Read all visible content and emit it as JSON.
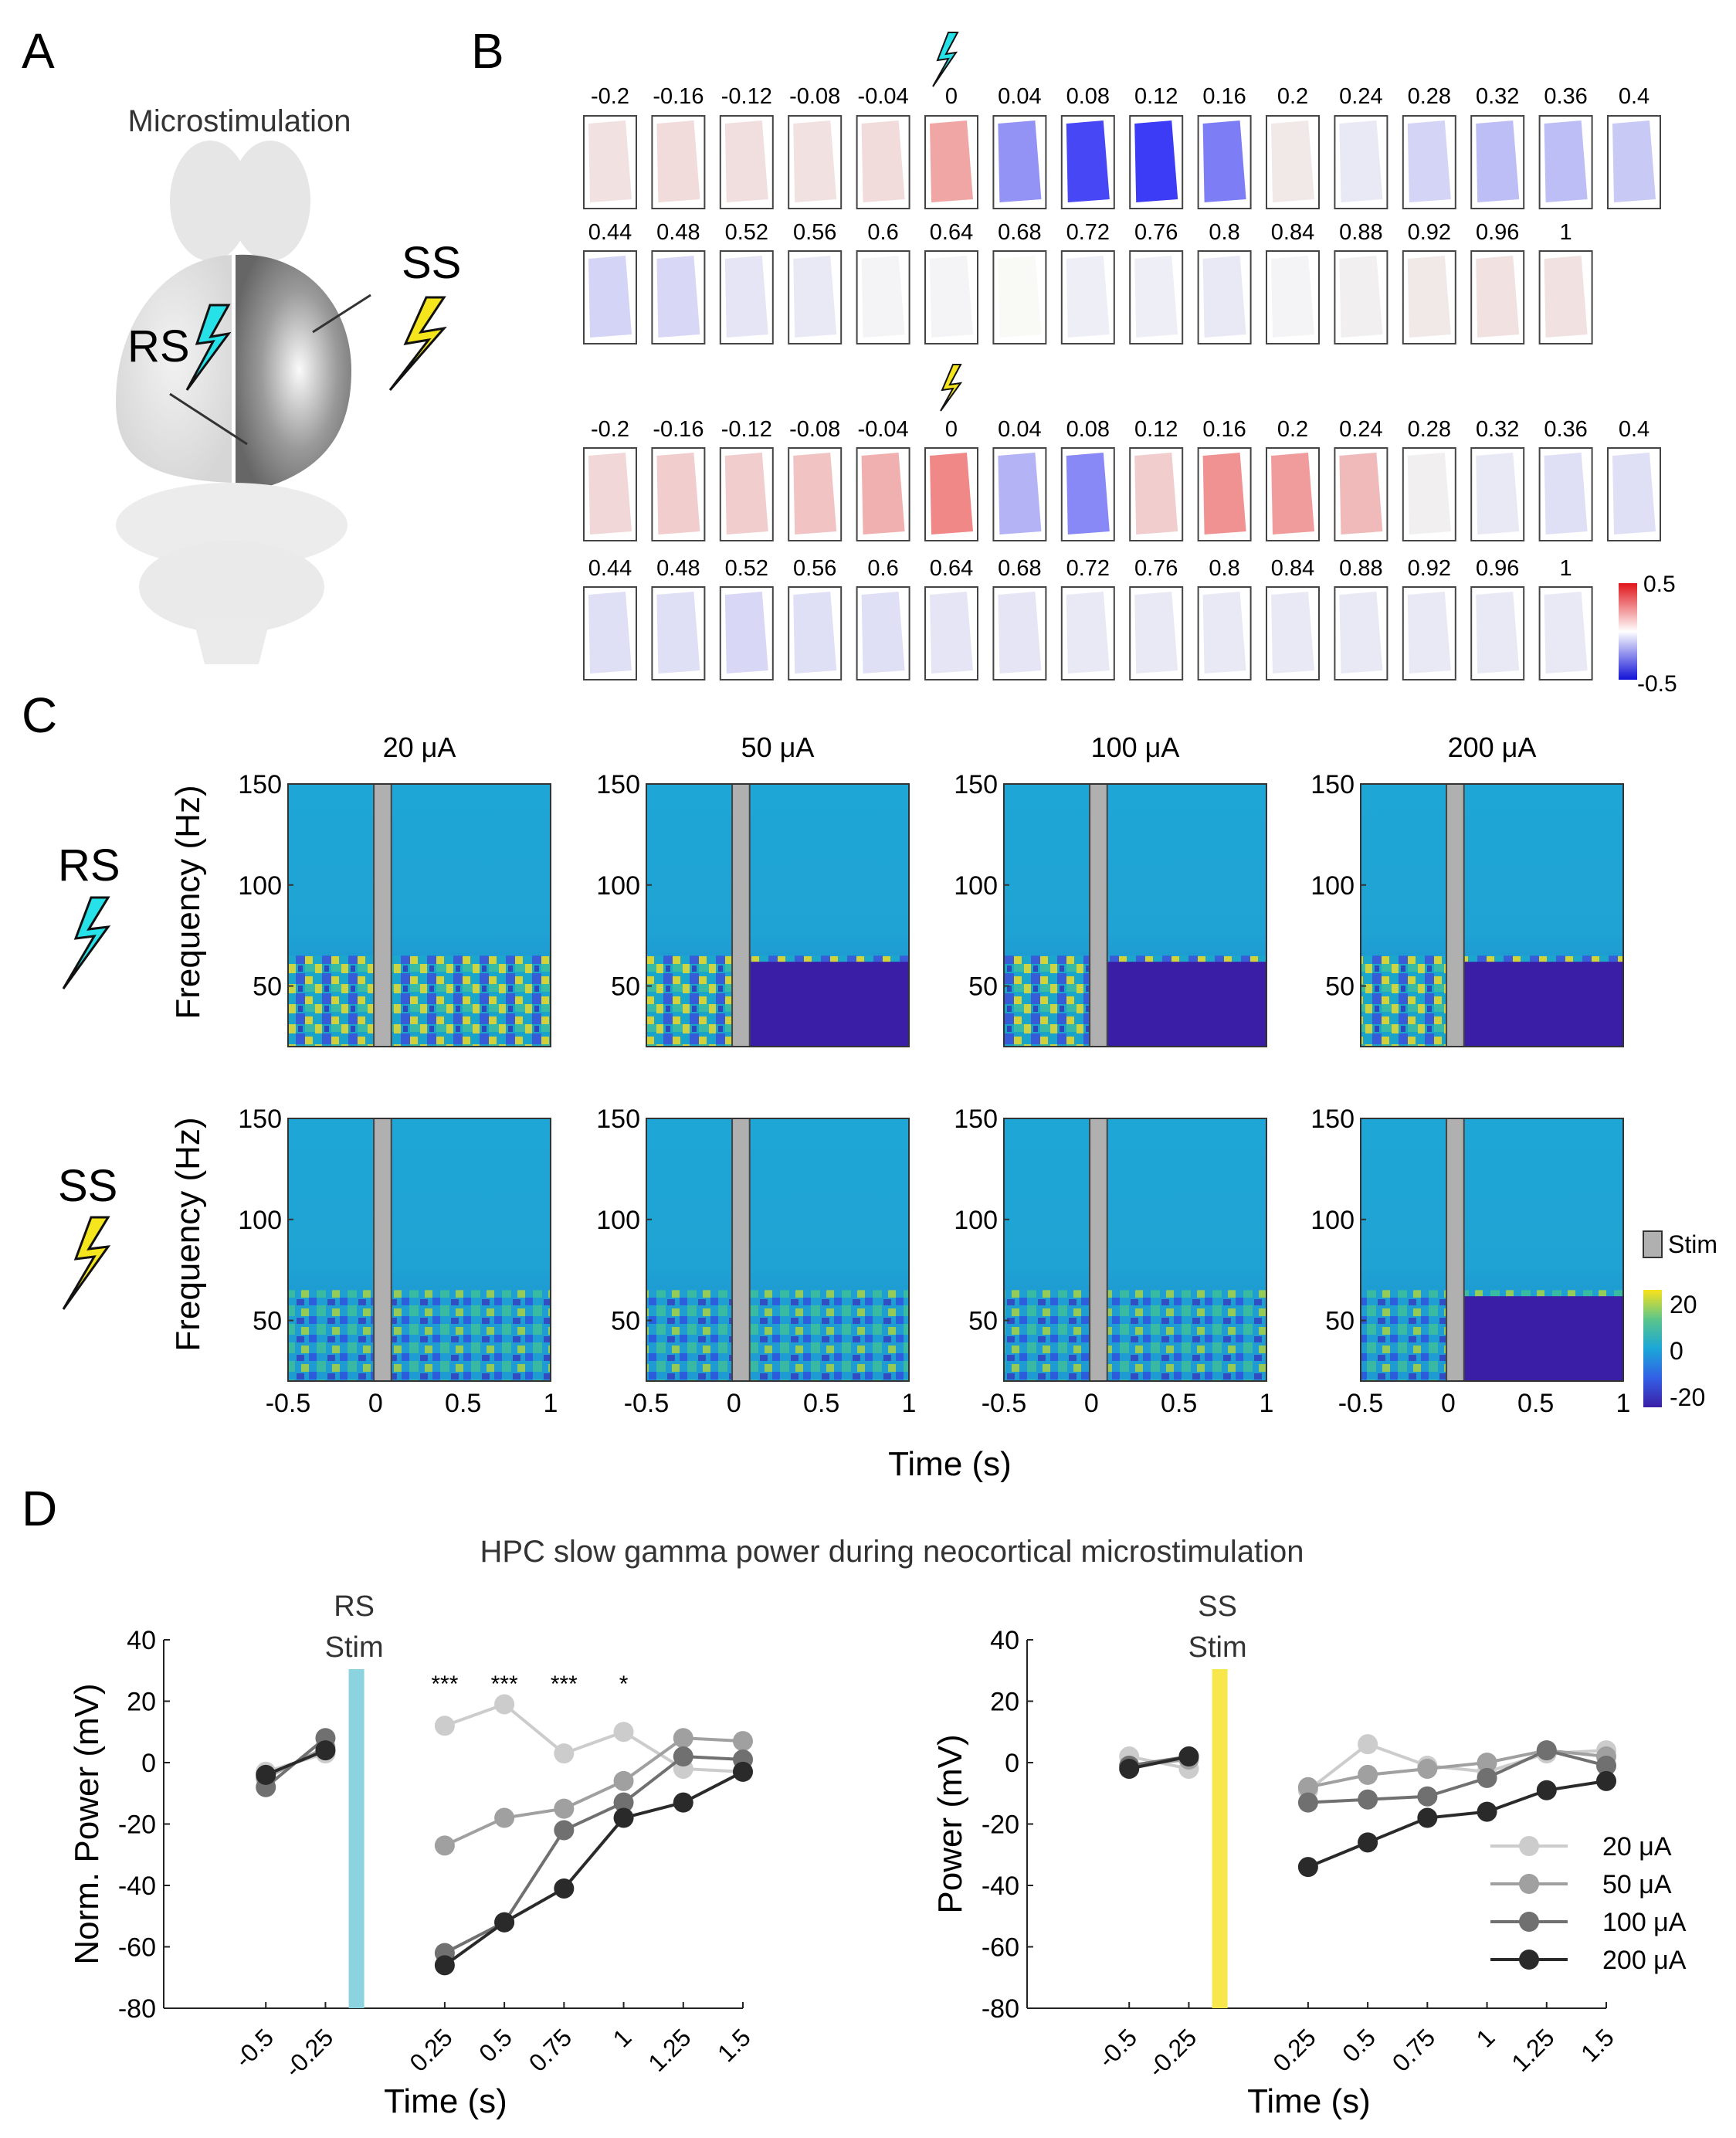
{
  "panels": {
    "a": "A",
    "b": "B",
    "c": "C",
    "d": "D"
  },
  "panel_a": {
    "title": "Microstimulation",
    "rs_label": "RS",
    "ss_label": "SS"
  },
  "panel_b": {
    "rs_row1_times": [
      "-0.2",
      "-0.16",
      "-0.12",
      "-0.08",
      "-0.04",
      "0",
      "0.04",
      "0.08",
      "0.12",
      "0.16",
      "0.2",
      "0.24",
      "0.28",
      "0.32",
      "0.36",
      "0.4"
    ],
    "rs_row2_times": [
      "0.44",
      "0.48",
      "0.52",
      "0.56",
      "0.6",
      "0.64",
      "0.68",
      "0.72",
      "0.76",
      "0.8",
      "0.84",
      "0.88",
      "0.92",
      "0.96",
      "1"
    ],
    "ss_row1_times": [
      "-0.2",
      "-0.16",
      "-0.12",
      "-0.08",
      "-0.04",
      "0",
      "0.04",
      "0.08",
      "0.12",
      "0.16",
      "0.2",
      "0.24",
      "0.28",
      "0.32",
      "0.36",
      "0.4"
    ],
    "ss_row2_times": [
      "0.44",
      "0.48",
      "0.52",
      "0.56",
      "0.6",
      "0.64",
      "0.68",
      "0.72",
      "0.76",
      "0.8",
      "0.84",
      "0.88",
      "0.92",
      "0.96",
      "1"
    ],
    "rs_values": [
      0.15,
      0.18,
      0.16,
      0.15,
      0.18,
      0.45,
      -0.5,
      -0.85,
      -0.9,
      -0.6,
      0.12,
      -0.1,
      -0.2,
      -0.3,
      -0.3,
      -0.25,
      -0.2,
      -0.18,
      -0.12,
      -0.1,
      -0.05,
      -0.05,
      -0.03,
      -0.08,
      -0.08,
      -0.1,
      -0.05,
      0.08,
      0.12,
      0.15,
      0.15
    ],
    "ss_values": [
      0.2,
      0.25,
      0.25,
      0.3,
      0.4,
      0.6,
      -0.35,
      -0.55,
      0.25,
      0.55,
      0.5,
      0.35,
      0.08,
      -0.1,
      -0.15,
      -0.15,
      -0.15,
      -0.15,
      -0.18,
      -0.15,
      -0.15,
      -0.12,
      -0.12,
      -0.1,
      -0.1,
      -0.1,
      -0.1,
      -0.1,
      -0.1,
      -0.1,
      -0.1
    ],
    "colorbar_max": "0.5",
    "colorbar_min": "-0.5"
  },
  "panel_c": {
    "columns": [
      "20 μA",
      "50 μA",
      "100 μA",
      "200 μA"
    ],
    "rows": [
      "RS",
      "SS"
    ],
    "ylabel": "Frequency (Hz)",
    "xlabel": "Time (s)",
    "yticks": [
      "150",
      "100",
      "50"
    ],
    "xticks": [
      "-0.5",
      "0",
      "0.5",
      "1"
    ],
    "stim_legend": "Stim",
    "colorbar_ticks": [
      "20",
      "0",
      "-20"
    ]
  },
  "panel_d": {
    "title": "HPC slow gamma power during neocortical microstimulation",
    "left": {
      "stim_label_1": "RS",
      "stim_label_2": "Stim",
      "ylabel": "Norm. Power (mV)"
    },
    "right": {
      "stim_label_1": "SS",
      "stim_label_2": "Stim",
      "ylabel": "Power (mV)"
    },
    "xlabel": "Time (s)",
    "yticks": [
      "40",
      "20",
      "0",
      "-20",
      "-40",
      "-60",
      "-80"
    ],
    "xticks": [
      "-0.5",
      "-0.25",
      "0.25",
      "0.5",
      "0.75",
      "1",
      "1.25",
      "1.5"
    ],
    "sig_stars": [
      "***",
      "***",
      "***",
      "*"
    ],
    "legend": [
      "20 μA",
      "50 μA",
      "100 μA",
      "200 μA"
    ]
  },
  "chart_data": [
    {
      "type": "line",
      "title": "HPC slow gamma power during neocortical microstimulation — RS Stim",
      "xlabel": "Time (s)",
      "ylabel": "Norm. Power (mV)",
      "ylim": [
        -80,
        40
      ],
      "pre_x": [
        -0.5,
        -0.25
      ],
      "post_x": [
        0.25,
        0.5,
        0.75,
        1,
        1.25,
        1.5
      ],
      "series": [
        {
          "name": "20 μA",
          "color": "#cccccc",
          "pre": [
            -3,
            3
          ],
          "post": [
            12,
            19,
            3,
            10,
            -2,
            -3
          ]
        },
        {
          "name": "50 μA",
          "color": "#a0a0a0",
          "pre": [
            -5,
            5
          ],
          "post": [
            -27,
            -18,
            -15,
            -6,
            8,
            7
          ]
        },
        {
          "name": "100 μA",
          "color": "#707070",
          "pre": [
            -8,
            8
          ],
          "post": [
            -62,
            -52,
            -22,
            -13,
            2,
            1
          ]
        },
        {
          "name": "200 μA",
          "color": "#2a2a2a",
          "pre": [
            -4,
            4
          ],
          "post": [
            -66,
            -52,
            -41,
            -18,
            -13,
            -3
          ]
        }
      ],
      "significance": [
        "***",
        "***",
        "***",
        "*"
      ]
    },
    {
      "type": "line",
      "title": "HPC slow gamma power during neocortical microstimulation — SS Stim",
      "xlabel": "Time (s)",
      "ylabel": "Power (mV)",
      "ylim": [
        -80,
        40
      ],
      "pre_x": [
        -0.5,
        -0.25
      ],
      "post_x": [
        0.25,
        0.5,
        0.75,
        1,
        1.25,
        1.5
      ],
      "series": [
        {
          "name": "20 μA",
          "color": "#cccccc",
          "pre": [
            2,
            -2
          ],
          "post": [
            -9,
            6,
            -1,
            -3,
            3,
            4
          ]
        },
        {
          "name": "50 μA",
          "color": "#a0a0a0",
          "pre": [
            -1,
            1
          ],
          "post": [
            -8,
            -4,
            -2,
            0,
            4,
            2
          ]
        },
        {
          "name": "100 μA",
          "color": "#707070",
          "pre": [
            -1,
            2
          ],
          "post": [
            -13,
            -12,
            -11,
            -5,
            4,
            -1
          ]
        },
        {
          "name": "200 μA",
          "color": "#2a2a2a",
          "pre": [
            -2,
            2
          ],
          "post": [
            -34,
            -26,
            -18,
            -16,
            -9,
            -6
          ]
        }
      ]
    }
  ]
}
